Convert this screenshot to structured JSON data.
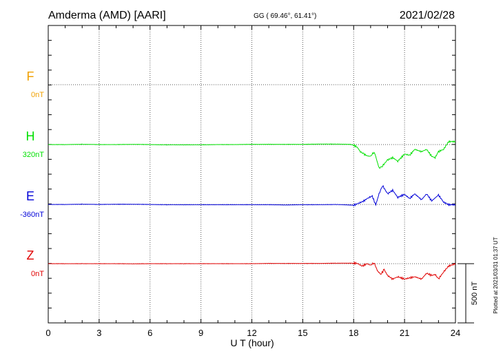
{
  "header": {
    "station": "Amderma (AMD)  [AARI]",
    "coords": "GG ( 69.46°,  61.41°)",
    "date": "2021/02/28"
  },
  "footer": {
    "xlabel": "U T (hour)",
    "plotted": "Plotted at 2021/03/31 01:37 UT",
    "scale_label": "500 nT"
  },
  "chart_data": {
    "type": "line",
    "title": "Amderma (AMD)  [AARI]",
    "subtitle": "GG ( 69.46°,  61.41°)",
    "date": "2021/02/28",
    "xlabel": "U T (hour)",
    "ylabel": "",
    "xlim": [
      0,
      24
    ],
    "xticks": [
      0,
      3,
      6,
      9,
      12,
      15,
      18,
      21,
      24
    ],
    "xtick_labels": [
      "0",
      "3",
      "6",
      "9",
      "12",
      "15",
      "18",
      "21",
      "24"
    ],
    "grid": true,
    "scale_bar_nT": 500,
    "scale_bar_label": "500 nT",
    "series": [
      {
        "name": "F",
        "baseline_label": "0nT",
        "color": "#f0a000",
        "unit": "nT",
        "baseline_nT": 0,
        "x": [],
        "values": []
      },
      {
        "name": "H",
        "baseline_label": "320nT",
        "color": "#00e000",
        "unit": "nT",
        "baseline_nT": 320,
        "x": [
          0,
          1,
          2,
          3,
          4,
          5,
          6,
          7,
          8,
          9,
          10,
          11,
          12,
          13,
          14,
          15,
          16,
          17,
          17.8,
          18.0,
          18.2,
          18.4,
          18.6,
          18.8,
          19.0,
          19.2,
          19.3,
          19.5,
          19.7,
          20.0,
          20.3,
          20.6,
          21.0,
          21.3,
          21.6,
          22.0,
          22.3,
          22.6,
          22.8,
          23.0,
          23.3,
          23.6,
          24.0
        ],
        "values": [
          0,
          0,
          2,
          0,
          0,
          2,
          0,
          -2,
          -2,
          -2,
          0,
          0,
          2,
          2,
          2,
          2,
          4,
          4,
          2,
          -5,
          -20,
          -60,
          -80,
          -95,
          -100,
          -60,
          -100,
          -200,
          -180,
          -130,
          -110,
          -140,
          -80,
          -90,
          -40,
          -60,
          -40,
          -100,
          -110,
          -60,
          -40,
          25,
          25
        ]
      },
      {
        "name": "E",
        "baseline_label": "-360nT",
        "color": "#0000d8",
        "unit": "nT",
        "baseline_nT": -360,
        "x": [
          0,
          1,
          2,
          3,
          4,
          5,
          6,
          7,
          8,
          9,
          10,
          11,
          12,
          13,
          14,
          15,
          16,
          17,
          18.0,
          18.3,
          18.6,
          18.9,
          19.1,
          19.3,
          19.5,
          19.7,
          20.0,
          20.3,
          20.6,
          21.0,
          21.3,
          21.6,
          22.0,
          22.3,
          22.6,
          23.0,
          23.3,
          23.6,
          24.0
        ],
        "values": [
          0,
          0,
          2,
          0,
          2,
          2,
          0,
          -2,
          -2,
          -2,
          -2,
          -2,
          -2,
          -2,
          -4,
          -2,
          -2,
          0,
          -6,
          10,
          30,
          60,
          70,
          -5,
          90,
          160,
          90,
          120,
          60,
          85,
          50,
          90,
          40,
          90,
          30,
          80,
          20,
          -2,
          -2
        ]
      },
      {
        "name": "Z",
        "baseline_label": "0nT",
        "color": "#e00000",
        "unit": "nT",
        "baseline_nT": 0,
        "x": [
          0,
          1,
          2,
          3,
          4,
          5,
          6,
          7,
          8,
          9,
          10,
          11,
          12,
          13,
          14,
          15,
          16,
          17,
          18.0,
          18.2,
          18.5,
          18.8,
          19.0,
          19.2,
          19.4,
          19.6,
          19.8,
          20.0,
          20.3,
          20.6,
          21.0,
          21.3,
          21.6,
          22.0,
          22.3,
          22.6,
          22.8,
          23.0,
          23.3,
          23.6,
          24.0
        ],
        "values": [
          0,
          0,
          0,
          0,
          0,
          -1,
          0,
          0,
          0,
          0,
          0,
          0,
          0,
          2,
          2,
          2,
          2,
          4,
          4,
          4,
          -20,
          0,
          -15,
          10,
          -60,
          -90,
          -50,
          -100,
          -130,
          -110,
          -130,
          -120,
          -110,
          -130,
          -80,
          -100,
          -90,
          -130,
          -70,
          -20,
          0
        ]
      }
    ]
  },
  "colors": {
    "F": "#f0a000",
    "H": "#00e000",
    "E": "#0000d8",
    "Z": "#e00000"
  }
}
